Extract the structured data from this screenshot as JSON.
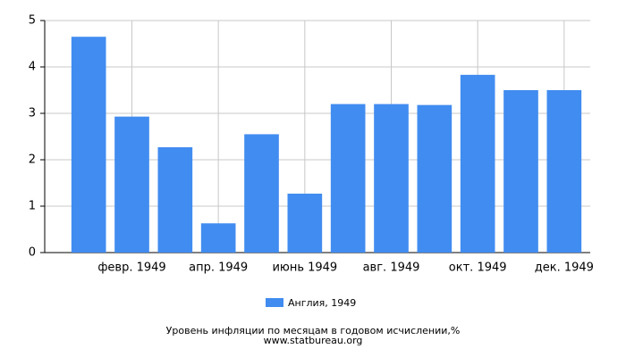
{
  "chart_data": {
    "type": "bar",
    "title": "Уровень инфляции по месяцам в годовом исчислении,%",
    "subtitle": "www.statbureau.org",
    "categories": [
      null,
      "февр. 1949",
      null,
      "апр. 1949",
      null,
      "июнь 1949",
      null,
      "авг. 1949",
      null,
      "окт. 1949",
      null,
      "дек. 1949"
    ],
    "series": [
      {
        "name": "Англия, 1949",
        "color": "#418cf0",
        "values": [
          4.65,
          2.93,
          2.27,
          0.63,
          2.55,
          1.27,
          3.2,
          3.2,
          3.18,
          3.83,
          3.5,
          3.5
        ]
      }
    ],
    "ylim": [
      0,
      5
    ],
    "yticks": [
      0,
      1,
      2,
      3,
      4,
      5
    ],
    "grid": true
  }
}
